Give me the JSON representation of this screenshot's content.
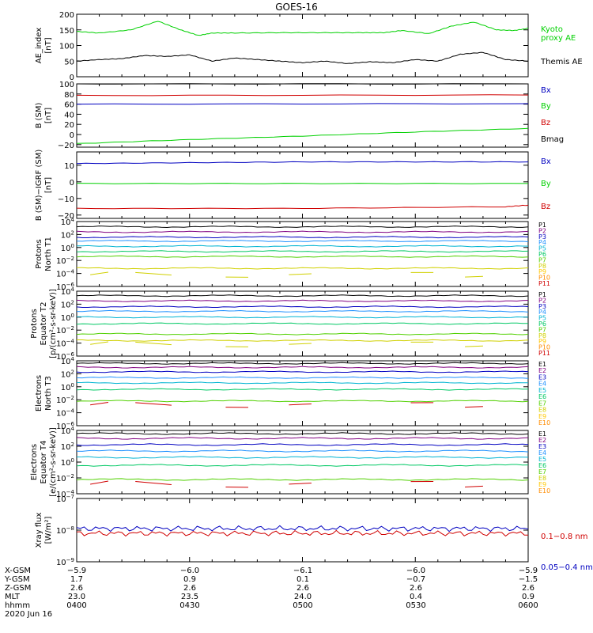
{
  "title": "GOES-16",
  "colors": {
    "black": "#000000",
    "green": "#00d000",
    "blue": "#0000c0",
    "red": "#d00000",
    "ch": [
      "#000000",
      "#800080",
      "#0000c0",
      "#1e90ff",
      "#00b4d2",
      "#00c864",
      "#50d000",
      "#d0d000",
      "#ffc800",
      "#ff8c00",
      "#d00000"
    ]
  },
  "chart_data": [
    {
      "type": "line",
      "id": "ae",
      "ylabel": [
        "AE_index",
        "[nT]"
      ],
      "ylim": [
        0,
        200
      ],
      "yticks": [
        "0",
        "50",
        "100",
        "150",
        "200"
      ],
      "ytickvals": [
        0,
        50,
        100,
        150,
        200
      ],
      "log": false,
      "series": [
        {
          "name": "Kyoto\nproxy AE",
          "color": "#00d000",
          "x": [
            0,
            0.05,
            0.12,
            0.18,
            0.23,
            0.27,
            0.3,
            0.35,
            0.45,
            0.55,
            0.63,
            0.68,
            0.72,
            0.78,
            0.83,
            0.88,
            0.93,
            0.97,
            1
          ],
          "y": [
            145,
            140,
            150,
            178,
            150,
            132,
            140,
            140,
            141,
            141,
            141,
            141,
            148,
            138,
            162,
            175,
            150,
            148,
            155
          ]
        },
        {
          "name": "Themis AE",
          "color": "#000000",
          "x": [
            0,
            0.05,
            0.1,
            0.15,
            0.2,
            0.25,
            0.3,
            0.35,
            0.4,
            0.45,
            0.5,
            0.55,
            0.6,
            0.65,
            0.7,
            0.75,
            0.8,
            0.85,
            0.9,
            0.95,
            1
          ],
          "y": [
            50,
            55,
            58,
            68,
            65,
            70,
            50,
            60,
            55,
            50,
            45,
            50,
            42,
            48,
            45,
            55,
            50,
            72,
            78,
            55,
            50
          ]
        }
      ]
    },
    {
      "type": "line",
      "id": "bsm",
      "ylabel": [
        "B (SM)",
        "[nT]"
      ],
      "ylim": [
        -25,
        100
      ],
      "yticks": [
        "−20",
        "0",
        "20",
        "40",
        "60",
        "80",
        "100"
      ],
      "ytickvals": [
        -20,
        0,
        20,
        40,
        60,
        80,
        100
      ],
      "log": false,
      "series": [
        {
          "name": "Bx",
          "color": "#0000c0",
          "x": [
            0,
            1
          ],
          "y": [
            60,
            61
          ]
        },
        {
          "name": "By",
          "color": "#00d000",
          "x": [
            0,
            0.25,
            0.5,
            0.75,
            1
          ],
          "y": [
            -18,
            -10,
            -3,
            5,
            12
          ]
        },
        {
          "name": "Bz",
          "color": "#d00000",
          "x": [
            0,
            1
          ],
          "y": [
            77,
            78
          ]
        },
        {
          "name": "Bmag",
          "color": "#000000",
          "x": [
            0,
            1
          ],
          "y": [
            100,
            100
          ]
        }
      ]
    },
    {
      "type": "line",
      "id": "bigrf",
      "ylabel": [
        "B (SM)−IGRF (SM)",
        "[nT]"
      ],
      "ylim": [
        -22,
        18
      ],
      "yticks": [
        "−20",
        "−10",
        "0",
        "10"
      ],
      "ytickvals": [
        -20,
        -10,
        0,
        10
      ],
      "log": false,
      "series": [
        {
          "name": "Bx",
          "color": "#0000c0",
          "x": [
            0,
            0.25,
            0.5,
            0.75,
            1
          ],
          "y": [
            11,
            11.5,
            12,
            12,
            12
          ]
        },
        {
          "name": "By",
          "color": "#00d000",
          "x": [
            0,
            0.5,
            1
          ],
          "y": [
            -1,
            -1,
            -1
          ]
        },
        {
          "name": "Bz",
          "color": "#d00000",
          "x": [
            0,
            0.5,
            0.95,
            1
          ],
          "y": [
            -16,
            -16,
            -15,
            -14
          ]
        }
      ]
    },
    {
      "type": "line",
      "id": "pnorth",
      "ylabel": [
        "Protons",
        "North T1"
      ],
      "ylim": [
        -6,
        4
      ],
      "yticks": [
        "10−6",
        "10−4",
        "10−2",
        "100",
        "102",
        "104"
      ],
      "ytickvals": [
        -6,
        -4,
        -2,
        0,
        2,
        4
      ],
      "log": true,
      "legend": [
        "P1",
        "P2",
        "P3",
        "P4",
        "P5",
        "P6",
        "P7",
        "P8",
        "P9",
        "P10",
        "P11"
      ],
      "levels": [
        3.2,
        2.4,
        1.6,
        1.0,
        0.2,
        -0.6,
        -1.4,
        -3.2,
        null,
        null,
        null
      ]
    },
    {
      "type": "line",
      "id": "pequ",
      "ylabel": [
        "Protons",
        "Equator T2",
        "[p/(cm²-s-sr-keV)]"
      ],
      "ylim": [
        -6,
        4
      ],
      "yticks": [
        "10−6",
        "10−4",
        "10−2",
        "100",
        "102",
        "104"
      ],
      "ytickvals": [
        -6,
        -4,
        -2,
        0,
        2,
        4
      ],
      "log": true,
      "legend": [
        "P1",
        "P2",
        "P3",
        "P4",
        "P5",
        "P6",
        "P7",
        "P8",
        "P9",
        "P10",
        "P11"
      ],
      "levels": [
        3.3,
        2.5,
        1.6,
        0.9,
        0.0,
        -1.0,
        -2.6,
        -3.6,
        null,
        null,
        null
      ]
    },
    {
      "type": "line",
      "id": "enorth",
      "ylabel": [
        "Electrons",
        "North T3"
      ],
      "ylim": [
        -6,
        4
      ],
      "yticks": [
        "10−6",
        "10−4",
        "10−2",
        "100",
        "102",
        "104"
      ],
      "ytickvals": [
        -6,
        -4,
        -2,
        0,
        2,
        4
      ],
      "log": true,
      "legend": [
        "E1",
        "E2",
        "E3",
        "E4",
        "E5",
        "E6",
        "E7",
        "E8",
        "E9",
        "E10"
      ],
      "levels": [
        3.6,
        3.0,
        2.3,
        1.4,
        0.6,
        -0.4,
        -2.2,
        null,
        null,
        null
      ]
    },
    {
      "type": "line",
      "id": "eequ",
      "ylabel": [
        "Electrons",
        "Equator T4",
        "[e/(cm²-s-sr-keV)]"
      ],
      "ylim": [
        -4,
        4
      ],
      "yticks": [
        "10−4",
        "10−2",
        "100",
        "102",
        "104"
      ],
      "ytickvals": [
        -4,
        -2,
        0,
        2,
        4
      ],
      "log": true,
      "legend": [
        "E1",
        "E2",
        "E3",
        "E4",
        "E5",
        "E6",
        "E7",
        "E8",
        "E9",
        "E10"
      ],
      "levels": [
        3.6,
        3.0,
        2.2,
        1.4,
        0.6,
        -0.4,
        -2.2,
        null,
        null,
        null
      ]
    },
    {
      "type": "line",
      "id": "xray",
      "ylabel": [
        "Xray flux",
        "[W/m²]"
      ],
      "ylim": [
        -9,
        -7
      ],
      "yticks": [
        "10−9",
        "10−8",
        "10−7"
      ],
      "ytickvals": [
        -9,
        -8,
        -7
      ],
      "log": true,
      "series": [
        {
          "name": "0.1−0.8 nm",
          "color": "#d00000",
          "level": -8.1
        },
        {
          "name": "0.05−0.4 nm",
          "color": "#0000c0",
          "level": -7.95
        }
      ]
    }
  ],
  "xaxis": {
    "rows": [
      {
        "label": "X-GSM",
        "values": [
          "−5.9",
          "−6.0",
          "−6.1",
          "−6.0",
          "−5.9"
        ]
      },
      {
        "label": "Y-GSM",
        "values": [
          "1.7",
          "0.9",
          "0.1",
          "−0.7",
          "−1.5"
        ]
      },
      {
        "label": "Z-GSM",
        "values": [
          "2.6",
          "2.6",
          "2.6",
          "2.6",
          "2.6"
        ]
      },
      {
        "label": "MLT",
        "values": [
          "23.0",
          "23.5",
          "24.0",
          "0.4",
          "0.9"
        ]
      },
      {
        "label": "hhmm",
        "values": [
          "0400",
          "0430",
          "0500",
          "0530",
          "0600"
        ]
      }
    ],
    "date": "2020 Jun 16"
  }
}
